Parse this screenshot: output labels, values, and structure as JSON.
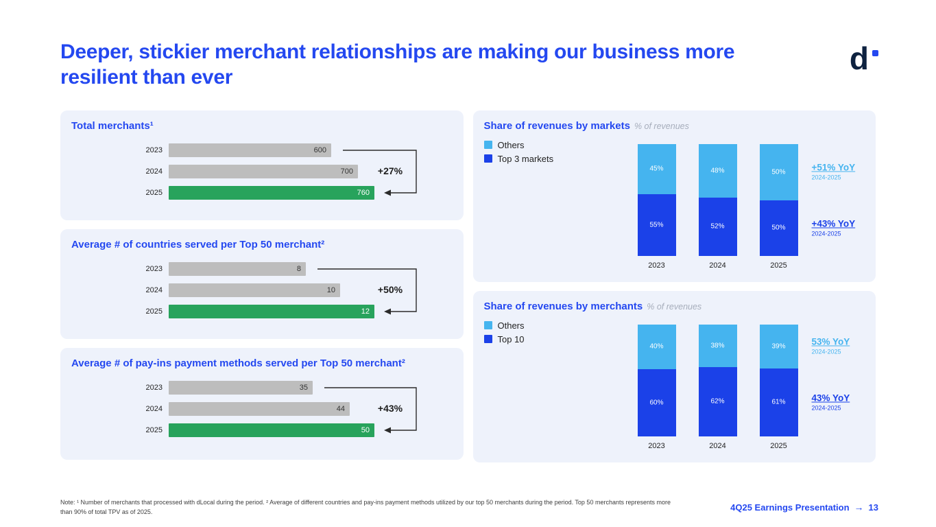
{
  "slide": {
    "title": "Deeper, stickier merchant relationships are making our business more resilient than ever",
    "logo_text": "d",
    "note": "Note: ¹ Number of merchants that processed with dLocal during the period. ² Average of different countries and pay-ins payment methods utilized by our top 50 merchants during the period. Top 50 merchants represents more than 90% of total TPV as of 2025.",
    "footer_label": "4Q25 Earnings Presentation",
    "footer_arrow": "→",
    "page_number": "13"
  },
  "colors": {
    "brand_blue": "#2448f0",
    "bar_gray": "#bdbdbd",
    "highlight_green": "#28a35c",
    "light_blue": "#45b4ef",
    "dark_blue": "#1b41e8",
    "panel_bg": "#eef2fb"
  },
  "chart_data": [
    {
      "type": "bar",
      "orientation": "horizontal",
      "title": "Total merchants¹",
      "categories": [
        "2023",
        "2024",
        "2025"
      ],
      "values": [
        600,
        700,
        760
      ],
      "highlight_last": true,
      "annotation": "+27%",
      "annotation_from": "2023",
      "annotation_to": "2025"
    },
    {
      "type": "bar",
      "orientation": "horizontal",
      "title": "Average # of countries served per Top 50 merchant²",
      "categories": [
        "2023",
        "2024",
        "2025"
      ],
      "values": [
        8,
        10,
        12
      ],
      "highlight_last": true,
      "annotation": "+50%",
      "annotation_from": "2023",
      "annotation_to": "2025"
    },
    {
      "type": "bar",
      "orientation": "horizontal",
      "title": "Average # of pay-ins payment methods served per Top 50 merchant²",
      "categories": [
        "2023",
        "2024",
        "2025"
      ],
      "values": [
        35,
        44,
        50
      ],
      "highlight_last": true,
      "annotation": "+43%",
      "annotation_from": "2023",
      "annotation_to": "2025"
    },
    {
      "type": "stacked_bar",
      "title": "Share of revenues by markets",
      "subtitle": "% of revenues",
      "categories": [
        "2023",
        "2024",
        "2025"
      ],
      "series": [
        {
          "name": "Others",
          "values": [
            45,
            48,
            50
          ],
          "color": "#45b4ef"
        },
        {
          "name": "Top 3 markets",
          "values": [
            55,
            52,
            50
          ],
          "color": "#1b41e8"
        }
      ],
      "annotations": [
        {
          "label": "+51% YoY",
          "period": "2024-2025",
          "color": "#45b4ef"
        },
        {
          "label": "+43% YoY",
          "period": "2024-2025",
          "color": "#1b41e8"
        }
      ],
      "ylim": [
        0,
        100
      ]
    },
    {
      "type": "stacked_bar",
      "title": "Share of revenues by merchants",
      "subtitle": "% of revenues",
      "categories": [
        "2023",
        "2024",
        "2025"
      ],
      "series": [
        {
          "name": "Others",
          "values": [
            40,
            38,
            39
          ],
          "color": "#45b4ef"
        },
        {
          "name": "Top 10",
          "values": [
            60,
            62,
            61
          ],
          "color": "#1b41e8"
        }
      ],
      "annotations": [
        {
          "label": "53% YoY",
          "period": "2024-2025",
          "color": "#45b4ef"
        },
        {
          "label": "43% YoY",
          "period": "2024-2025",
          "color": "#1b41e8"
        }
      ],
      "ylim": [
        0,
        100
      ]
    }
  ]
}
